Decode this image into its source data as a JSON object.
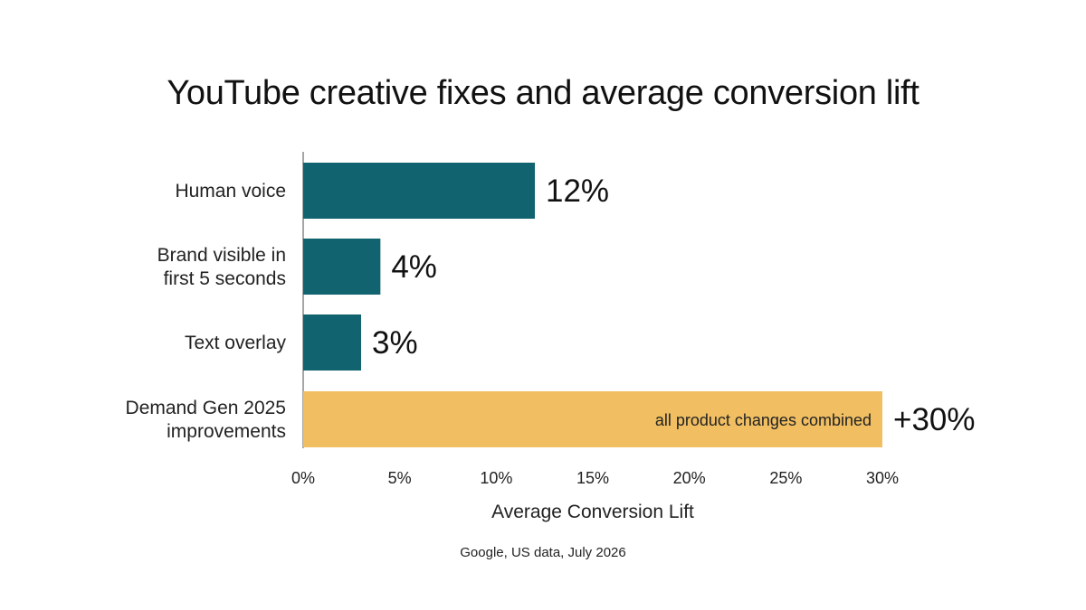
{
  "colors": {
    "bar_primary": "#10636f",
    "bar_highlight": "#f1bf62",
    "axis": "#888888"
  },
  "chart_data": {
    "type": "bar",
    "orientation": "horizontal",
    "title": "YouTube creative fixes and average conversion lift",
    "xlabel": "Average Conversion Lift",
    "ylabel": "",
    "xlim": [
      0,
      30
    ],
    "x_ticks": [
      0,
      5,
      10,
      15,
      20,
      25,
      30
    ],
    "x_tick_labels": [
      "0%",
      "5%",
      "10%",
      "15%",
      "20%",
      "25%",
      "30%"
    ],
    "grid": false,
    "categories": [
      [
        "Human voice"
      ],
      [
        "Brand visible in",
        "first 5 seconds"
      ],
      [
        "Text overlay"
      ],
      [
        "Demand Gen 2025",
        "improvements"
      ]
    ],
    "values": [
      12,
      4,
      3,
      30
    ],
    "value_labels": [
      "12%",
      "4%",
      "3%",
      "+30%"
    ],
    "bar_colors": [
      "bar_primary",
      "bar_primary",
      "bar_primary",
      "bar_highlight"
    ],
    "inner_labels": [
      "",
      "",
      "",
      "all product changes combined"
    ],
    "source": "Google, US data, July 2026"
  }
}
